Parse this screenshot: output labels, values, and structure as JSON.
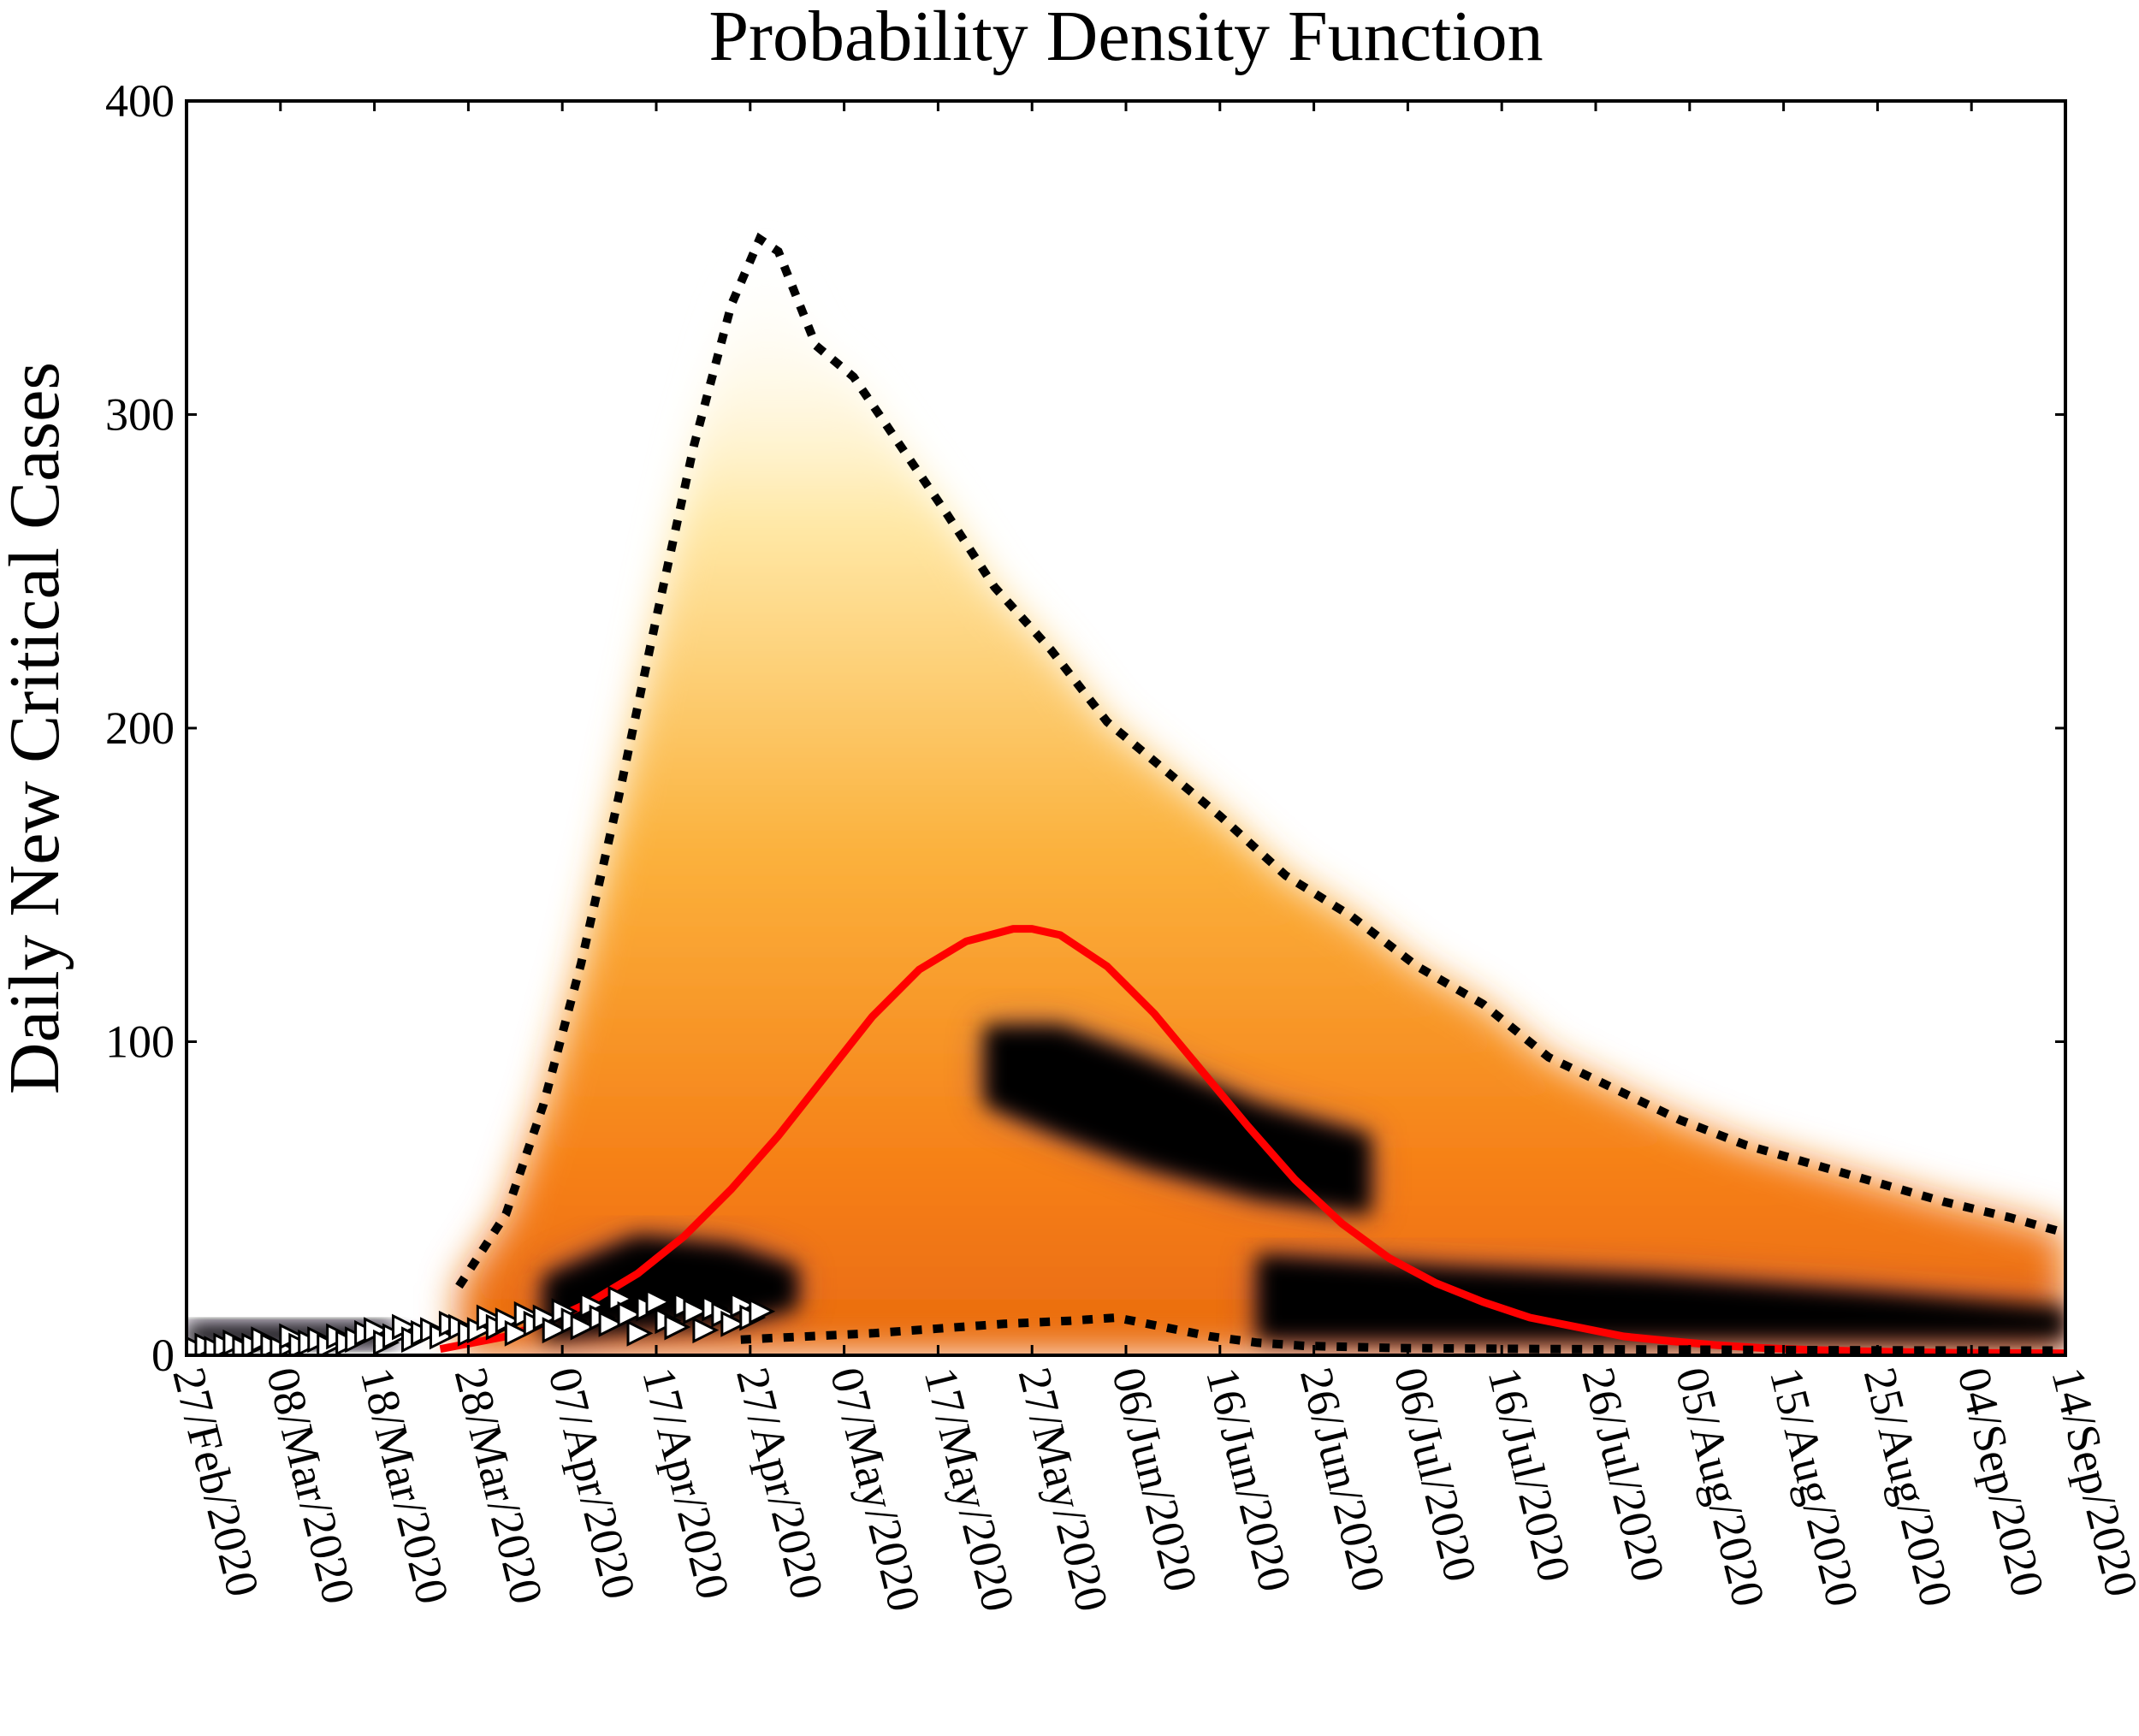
{
  "chart_data": {
    "type": "line",
    "title": "Probability Density Function",
    "ylabel": "Daily New Critical Cases",
    "xlabel": "",
    "ylim": [
      0,
      400
    ],
    "yticks": [
      0,
      100,
      200,
      300,
      400
    ],
    "xlim": [
      "2020-02-27",
      "2020-09-14"
    ],
    "xtick_labels": [
      "27/Feb/2020",
      "08/Mar/2020",
      "18/Mar/2020",
      "28/Mar/2020",
      "07/Apr/2020",
      "17/Apr/2020",
      "27/Apr/2020",
      "07/May/2020",
      "17/May/2020",
      "27/May/2020",
      "06/Jun/2020",
      "16/Jun/2020",
      "26/Jun/2020",
      "06/Jul/2020",
      "16/Jul/2020",
      "26/Jul/2020",
      "05/Aug/2020",
      "15/Aug/2020",
      "25/Aug/2020",
      "04/Sep/2020",
      "14/Sep/2020"
    ],
    "grid": false,
    "legend": "none",
    "series": [
      {
        "style": "solid",
        "color": "#ff0000",
        "x": [
          "2020-03-25",
          "2020-04-01",
          "2020-04-05",
          "2020-04-10",
          "2020-04-15",
          "2020-04-20",
          "2020-04-25",
          "2020-04-30",
          "2020-05-05",
          "2020-05-10",
          "2020-05-15",
          "2020-05-20",
          "2020-05-25",
          "2020-05-27",
          "2020-05-30",
          "2020-06-04",
          "2020-06-09",
          "2020-06-14",
          "2020-06-19",
          "2020-06-24",
          "2020-06-29",
          "2020-07-04",
          "2020-07-09",
          "2020-07-14",
          "2020-07-19",
          "2020-07-24",
          "2020-07-29",
          "2020-08-03",
          "2020-08-08",
          "2020-08-13",
          "2020-08-18",
          "2020-08-23",
          "2020-08-28",
          "2020-09-02",
          "2020-09-07",
          "2020-09-14"
        ],
        "y": [
          2,
          6,
          10,
          17,
          26,
          38,
          53,
          70,
          89,
          108,
          123,
          132,
          136,
          136,
          134,
          124,
          109,
          91,
          73,
          56,
          42,
          31,
          23,
          17,
          12,
          9,
          6,
          4.5,
          3.2,
          2.3,
          1.7,
          1.3,
          1.0,
          0.8,
          0.7,
          0.6
        ]
      },
      {
        "style": "dotted",
        "color": "#000000",
        "x": [
          "2020-03-27",
          "2020-04-01",
          "2020-04-05",
          "2020-04-09",
          "2020-04-13",
          "2020-04-17",
          "2020-04-21",
          "2020-04-25",
          "2020-04-28",
          "2020-04-30",
          "2020-05-04",
          "2020-05-08",
          "2020-05-13",
          "2020-05-18",
          "2020-05-23",
          "2020-05-29",
          "2020-06-04",
          "2020-06-10",
          "2020-06-16",
          "2020-06-23",
          "2020-06-30",
          "2020-07-07",
          "2020-07-14",
          "2020-07-21",
          "2020-07-28",
          "2020-08-04",
          "2020-08-11",
          "2020-08-18",
          "2020-08-25",
          "2020-09-01",
          "2020-09-08",
          "2020-09-14"
        ],
        "y": [
          22,
          45,
          80,
          125,
          178,
          235,
          290,
          335,
          356,
          352,
          322,
          312,
          290,
          268,
          245,
          225,
          202,
          187,
          172,
          153,
          140,
          124,
          112,
          95,
          85,
          75,
          67,
          61,
          55,
          49,
          44,
          39
        ]
      },
      {
        "style": "dotted",
        "color": "#000000",
        "x": [
          "2020-04-26",
          "2020-05-03",
          "2020-05-10",
          "2020-05-17",
          "2020-05-24",
          "2020-05-31",
          "2020-06-05",
          "2020-06-10",
          "2020-06-15",
          "2020-06-20",
          "2020-06-25",
          "2020-07-05",
          "2020-07-20",
          "2020-08-05",
          "2020-08-20",
          "2020-09-05",
          "2020-09-14"
        ],
        "y": [
          5,
          6,
          7,
          8.5,
          10,
          11,
          12,
          9,
          6,
          4,
          3,
          2.3,
          2,
          1.8,
          1.6,
          1.5,
          1.5
        ]
      }
    ],
    "density_bands": [
      {
        "level": "dark",
        "x": [
          "2020-05-22",
          "2020-05-30",
          "2020-06-08",
          "2020-06-20",
          "2020-07-02"
        ],
        "y_low": [
          80,
          70,
          60,
          50,
          45
        ],
        "y_high": [
          105,
          105,
          95,
          80,
          70
        ]
      },
      {
        "level": "dark",
        "x": [
          "2020-04-05",
          "2020-04-15",
          "2020-04-25",
          "2020-05-02"
        ],
        "y_low": [
          5,
          8,
          10,
          15
        ],
        "y_high": [
          25,
          38,
          35,
          28
        ]
      },
      {
        "level": "dark",
        "x": [
          "2020-06-20",
          "2020-07-10",
          "2020-08-01",
          "2020-08-25",
          "2020-09-14"
        ],
        "y_low": [
          5,
          5,
          5,
          5,
          5
        ],
        "y_high": [
          32,
          28,
          25,
          20,
          15
        ]
      },
      {
        "level": "dark",
        "x": [
          "2020-02-27",
          "2020-03-20"
        ],
        "y_low": [
          3,
          3
        ],
        "y_high": [
          10,
          10
        ]
      }
    ],
    "observed_points": {
      "marker": "triangle-right",
      "x": [
        "2020-02-27",
        "2020-02-28",
        "2020-02-29",
        "2020-03-01",
        "2020-03-02",
        "2020-03-03",
        "2020-03-04",
        "2020-03-05",
        "2020-03-06",
        "2020-03-07",
        "2020-03-08",
        "2020-03-09",
        "2020-03-10",
        "2020-03-11",
        "2020-03-12",
        "2020-03-13",
        "2020-03-14",
        "2020-03-15",
        "2020-03-16",
        "2020-03-17",
        "2020-03-18",
        "2020-03-19",
        "2020-03-20",
        "2020-03-21",
        "2020-03-22",
        "2020-03-23",
        "2020-03-24",
        "2020-03-25",
        "2020-03-26",
        "2020-03-27",
        "2020-03-28",
        "2020-03-29",
        "2020-03-30",
        "2020-03-31",
        "2020-04-01",
        "2020-04-02",
        "2020-04-03",
        "2020-04-04",
        "2020-04-05",
        "2020-04-06",
        "2020-04-07",
        "2020-04-08",
        "2020-04-09",
        "2020-04-10",
        "2020-04-11",
        "2020-04-12",
        "2020-04-13",
        "2020-04-14",
        "2020-04-15",
        "2020-04-16",
        "2020-04-17",
        "2020-04-18",
        "2020-04-19",
        "2020-04-20",
        "2020-04-21",
        "2020-04-22",
        "2020-04-23",
        "2020-04-24",
        "2020-04-25",
        "2020-04-26",
        "2020-04-27",
        "2020-04-28"
      ],
      "y": [
        3,
        2,
        3,
        2,
        3,
        4,
        2,
        3,
        5,
        3,
        2,
        6,
        3,
        4,
        5,
        3,
        6,
        4,
        5,
        7,
        8,
        4,
        6,
        9,
        5,
        7,
        8,
        6,
        10,
        9,
        7,
        8,
        12,
        9,
        11,
        7,
        13,
        10,
        12,
        8,
        14,
        11,
        9,
        16,
        12,
        10,
        18,
        13,
        7,
        15,
        17,
        11,
        9,
        16,
        14,
        8,
        15,
        13,
        10,
        16,
        12,
        14
      ]
    }
  }
}
